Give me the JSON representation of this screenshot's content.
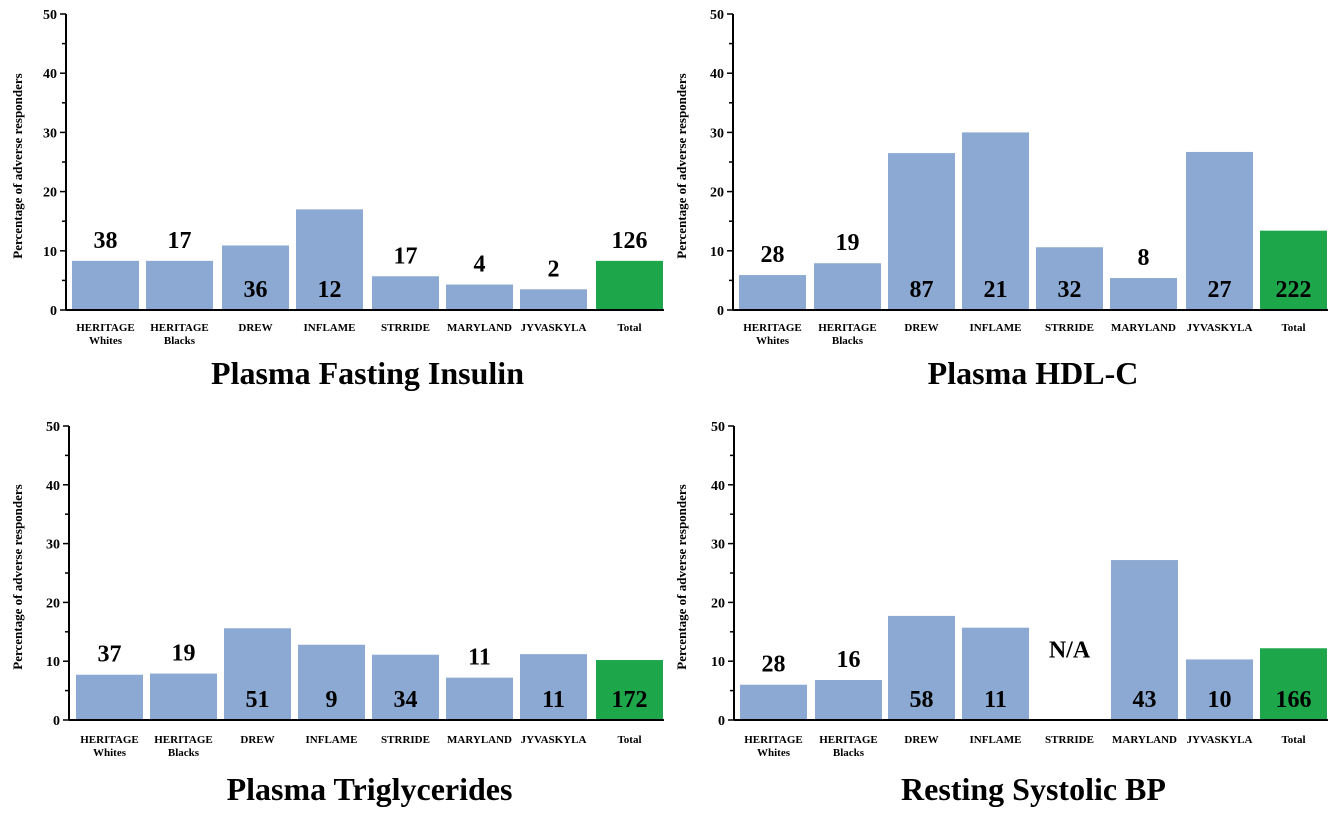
{
  "colors": {
    "bar": "#8ba9d2",
    "total_bar": "#1ea64a",
    "axis": "#000000"
  },
  "chart_data": [
    {
      "type": "bar",
      "title": "Plasma Fasting Insulin",
      "ylabel": "Percentage of adverse responders",
      "ylim": [
        0,
        50
      ],
      "yticks": [
        0,
        10,
        20,
        30,
        40,
        50
      ],
      "categories": [
        [
          "HERITAGE",
          "Whites"
        ],
        [
          "HERITAGE",
          "Blacks"
        ],
        [
          "DREW"
        ],
        [
          "INFLAME"
        ],
        [
          "STRRIDE"
        ],
        [
          "MARYLAND"
        ],
        [
          "JYVASKYLA"
        ],
        [
          "Total"
        ]
      ],
      "values": [
        8.3,
        8.3,
        10.9,
        17.0,
        5.7,
        4.3,
        3.5,
        8.3
      ],
      "labels": [
        "38",
        "17",
        "36",
        "12",
        "17",
        "4",
        "2",
        "126"
      ]
    },
    {
      "type": "bar",
      "title": "Plasma HDL-C",
      "ylabel": "Percentage of adverse responders",
      "ylim": [
        0,
        50
      ],
      "yticks": [
        0,
        10,
        20,
        30,
        40,
        50
      ],
      "categories": [
        [
          "HERITAGE",
          "Whites"
        ],
        [
          "HERITAGE",
          "Blacks"
        ],
        [
          "DREW"
        ],
        [
          "INFLAME"
        ],
        [
          "STRRIDE"
        ],
        [
          "MARYLAND"
        ],
        [
          "JYVASKYLA"
        ],
        [
          "Total"
        ]
      ],
      "values": [
        5.9,
        7.9,
        26.5,
        30.0,
        10.6,
        5.4,
        26.7,
        13.4
      ],
      "labels": [
        "28",
        "19",
        "87",
        "21",
        "32",
        "8",
        "27",
        "222"
      ]
    },
    {
      "type": "bar",
      "title": "Plasma Triglycerides",
      "ylabel": "Percentage of adverse responders",
      "ylim": [
        0,
        50
      ],
      "yticks": [
        0,
        10,
        20,
        30,
        40,
        50
      ],
      "categories": [
        [
          "HERITAGE",
          "Whites"
        ],
        [
          "HERITAGE",
          "Blacks"
        ],
        [
          "DREW"
        ],
        [
          "INFLAME"
        ],
        [
          "STRRIDE"
        ],
        [
          "MARYLAND"
        ],
        [
          "JYVASKYLA"
        ],
        [
          "Total"
        ]
      ],
      "values": [
        7.7,
        7.9,
        15.6,
        12.8,
        11.1,
        7.2,
        11.2,
        10.2
      ],
      "labels": [
        "37",
        "19",
        "51",
        "9",
        "34",
        "11",
        "11",
        "172"
      ]
    },
    {
      "type": "bar",
      "title": "Resting Systolic BP",
      "ylabel": "Percentage of adverse responders",
      "ylim": [
        0,
        50
      ],
      "yticks": [
        0,
        10,
        20,
        30,
        40,
        50
      ],
      "categories": [
        [
          "HERITAGE",
          "Whites"
        ],
        [
          "HERITAGE",
          "Blacks"
        ],
        [
          "DREW"
        ],
        [
          "INFLAME"
        ],
        [
          "STRRIDE"
        ],
        [
          "MARYLAND"
        ],
        [
          "JYVASKYLA"
        ],
        [
          "Total"
        ]
      ],
      "values": [
        6.0,
        6.8,
        17.7,
        15.7,
        null,
        27.2,
        10.3,
        12.2
      ],
      "labels": [
        "28",
        "16",
        "58",
        "11",
        "N/A",
        "43",
        "10",
        "166"
      ]
    }
  ]
}
